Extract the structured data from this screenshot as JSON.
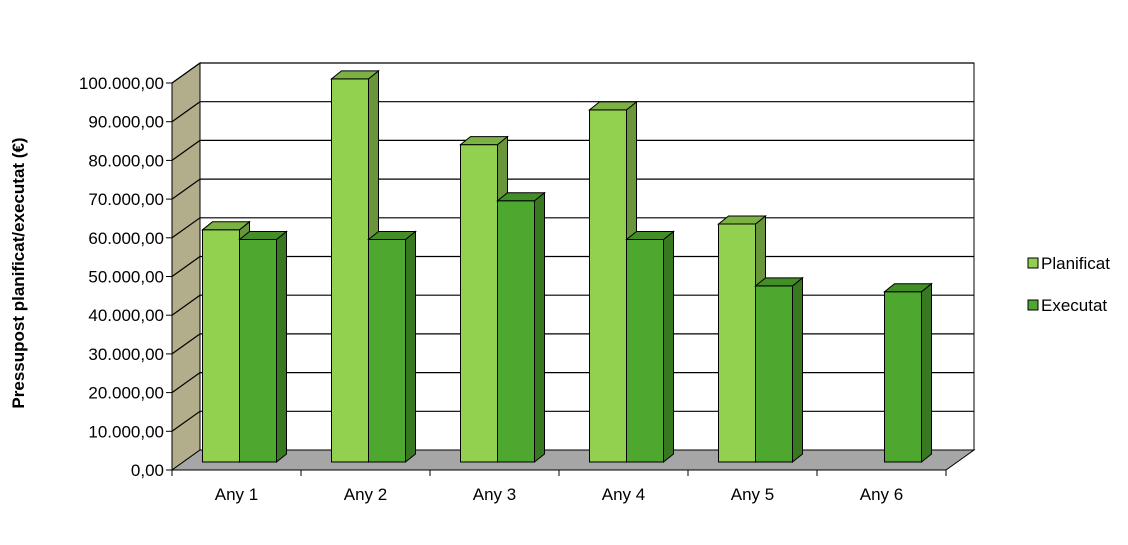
{
  "chart_data": {
    "type": "bar",
    "title": "",
    "xlabel": "",
    "ylabel": "Pressupost planificat/executat (€)",
    "ylim": [
      0,
      100000
    ],
    "y_ticks": [
      "0,00",
      "10.000,00",
      "20.000,00",
      "30.000,00",
      "40.000,00",
      "50.000,00",
      "60.000,00",
      "70.000,00",
      "80.000,00",
      "90.000,00",
      "100.000,00"
    ],
    "categories": [
      "Any 1",
      "Any 2",
      "Any 3",
      "Any 4",
      "Any 5",
      "Any 6"
    ],
    "series": [
      {
        "name": "Planificat",
        "color": "#92d050",
        "values": [
          60000,
          99000,
          82000,
          91000,
          61500,
          null
        ]
      },
      {
        "name": "Executat",
        "color": "#4ea72e",
        "values": [
          57500,
          57500,
          67500,
          57500,
          45500,
          44000
        ]
      }
    ],
    "grid": true,
    "legend_position": "right",
    "style": "3d-clustered-column"
  }
}
